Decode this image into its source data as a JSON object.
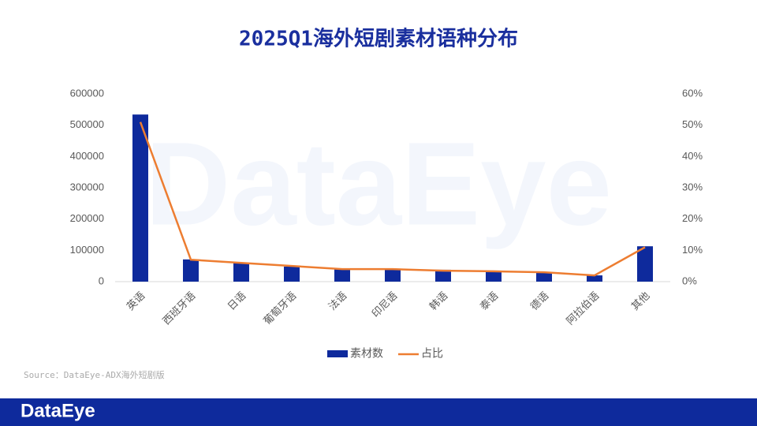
{
  "chart_data": {
    "type": "bar-line",
    "title": "2025Q1海外短剧素材语种分布",
    "categories": [
      "英语",
      "西班牙语",
      "日语",
      "葡萄牙语",
      "法语",
      "印尼语",
      "韩语",
      "泰语",
      "德语",
      "阿拉伯语",
      "其他"
    ],
    "series": [
      {
        "name": "素材数",
        "color": "#0e2a9c",
        "type": "bar",
        "values": [
          534000,
          71000,
          60000,
          48000,
          40000,
          40000,
          38000,
          35000,
          30000,
          20000,
          113000
        ]
      },
      {
        "name": "占比",
        "color": "#ed7d31",
        "type": "line",
        "axis": "y2",
        "values": [
          51,
          7,
          6,
          5,
          4,
          4,
          3.5,
          3.3,
          3,
          2,
          11
        ]
      }
    ],
    "ylim": [
      0,
      600000
    ],
    "yticks": [
      0,
      100000,
      200000,
      300000,
      400000,
      500000,
      600000
    ],
    "y2lim": [
      0,
      60
    ],
    "y2ticks": [
      {
        "value": 0,
        "label": "0%"
      },
      {
        "value": 10,
        "label": "10%"
      },
      {
        "value": 20,
        "label": "20%"
      },
      {
        "value": 30,
        "label": "30%"
      },
      {
        "value": 40,
        "label": "40%"
      },
      {
        "value": 50,
        "label": "50%"
      },
      {
        "value": 60,
        "label": "60%"
      }
    ],
    "legend": "bottom",
    "source": "Source：DataEye-ADX海外短剧版",
    "watermark": "DataEye",
    "brand": "DataEye"
  }
}
